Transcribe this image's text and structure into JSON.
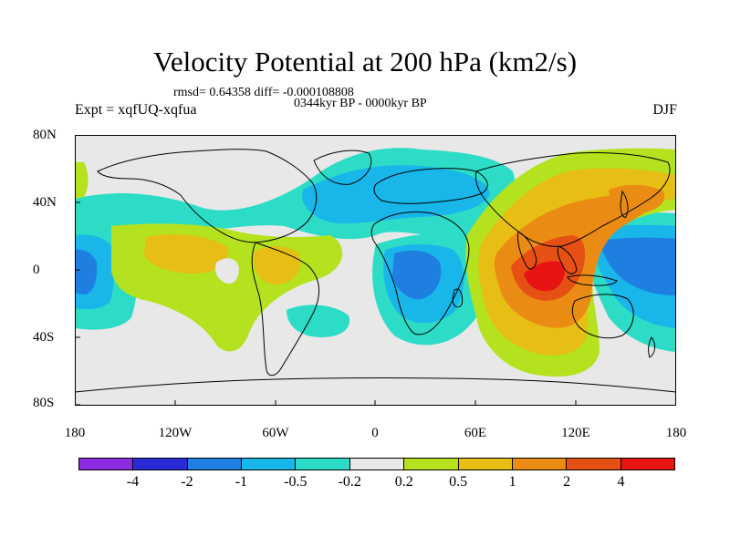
{
  "title": "Velocity Potential at 200 hPa (km2/s)",
  "stats": "rmsd= 0.64358 diff= -0.000108808",
  "period": "0344kyr BP - 0000kyr BP",
  "experiment": "Expt = xqfUQ-xqfua",
  "season": "DJF",
  "y_axis": {
    "ticks": [
      "80N",
      "40N",
      "0",
      "40S",
      "80S"
    ]
  },
  "x_axis": {
    "ticks": [
      "180",
      "120W",
      "60W",
      "0",
      "60E",
      "120E",
      "180"
    ]
  },
  "colorbar": {
    "colors": [
      "#8a2be2",
      "#2a2ad6",
      "#1e7fe0",
      "#19b6ea",
      "#2ddcc6",
      "#e8e8e8",
      "#b4e21e",
      "#e6be14",
      "#ea8c14",
      "#e65014",
      "#e81414"
    ],
    "labels": [
      "-4",
      "-2",
      "-1",
      "-0.5",
      "-0.2",
      "0.2",
      "0.5",
      "1",
      "2",
      "4"
    ]
  },
  "map_data": {
    "field": "velocity potential difference",
    "units": "km2/s",
    "background_color": "#e8e8e8",
    "coastline_color": "#000000"
  }
}
